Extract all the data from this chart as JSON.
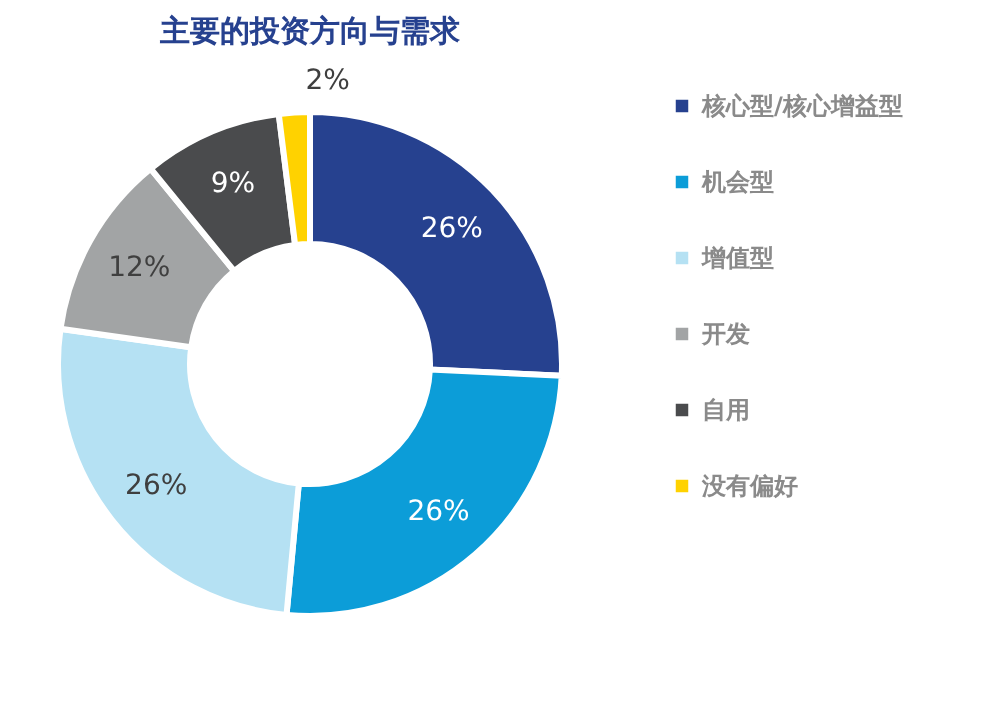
{
  "chart_data": {
    "type": "donut",
    "title": "主要的投资方向与需求",
    "categories": [
      "核心型/核心增益型",
      "机会型",
      "增值型",
      "开发",
      "自用",
      "没有偏好"
    ],
    "values": [
      26,
      26,
      26,
      12,
      9,
      2
    ],
    "value_labels": [
      "26%",
      "26%",
      "26%",
      "12%",
      "9%",
      "2%"
    ],
    "colors": [
      "#26418f",
      "#0c9dd8",
      "#b5e1f3",
      "#a2a4a5",
      "#4a4b4d",
      "#ffd200"
    ],
    "legend": "right"
  }
}
